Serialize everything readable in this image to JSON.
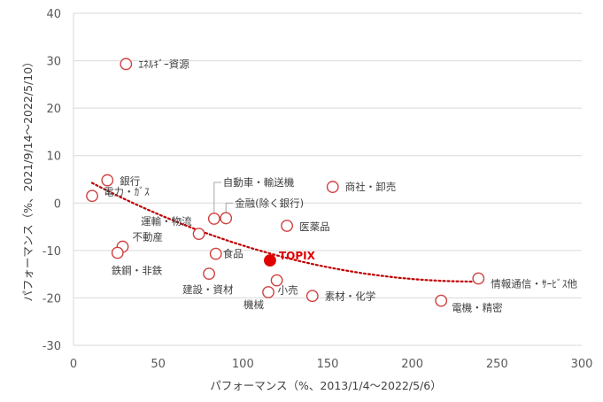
{
  "chart_data": {
    "type": "scatter",
    "title": "",
    "xlabel": "パフォーマンス（%、2013/1/4～2022/5/6）",
    "ylabel": "パフォーマンス（%、2021/9/14～2022/5/10）",
    "xlim": [
      0,
      300
    ],
    "ylim": [
      -30,
      40
    ],
    "x_ticks": [
      "0",
      "50",
      "100",
      "150",
      "200",
      "250",
      "300"
    ],
    "y_ticks": [
      "40",
      "30",
      "20",
      "10",
      "0",
      "-10",
      "-20",
      "-30"
    ],
    "grid": "horizontal",
    "legend": "none",
    "points": [
      {
        "label": "ｴﾈﾙｷﾞｰ資源",
        "x": 31,
        "y": 29.3
      },
      {
        "label": "銀行",
        "x": 20,
        "y": 4.8
      },
      {
        "label": "電力・ｶﾞｽ",
        "x": 11,
        "y": 1.5
      },
      {
        "label": "自動車・輸送機",
        "x": 83,
        "y": -3.3
      },
      {
        "label": "金融(除く銀行)",
        "x": 90,
        "y": -3.2
      },
      {
        "label": "商社・卸売",
        "x": 153,
        "y": 3.4
      },
      {
        "label": "運輸・物流",
        "x": 74,
        "y": -6.5
      },
      {
        "label": "医薬品",
        "x": 126,
        "y": -4.8
      },
      {
        "label": "不動産",
        "x": 29,
        "y": -9.2
      },
      {
        "label": "鉄鋼・非鉄",
        "x": 26,
        "y": -10.5
      },
      {
        "label": "食品",
        "x": 84,
        "y": -10.7
      },
      {
        "label": "建設・資材",
        "x": 80,
        "y": -14.9
      },
      {
        "label": "小売",
        "x": 120,
        "y": -16.3
      },
      {
        "label": "機械",
        "x": 115,
        "y": -18.8
      },
      {
        "label": "素材・化学",
        "x": 141,
        "y": -19.6
      },
      {
        "label": "情報通信・ｻｰﾋﾞｽ他",
        "x": 239,
        "y": -15.9
      },
      {
        "label": "電機・精密",
        "x": 217,
        "y": -20.6
      }
    ],
    "highlight": {
      "label": "TOPIX",
      "x": 116,
      "y": -12.1,
      "color": "#e00000"
    },
    "trendline": {
      "style": "dotted",
      "color": "#c00000",
      "type": "polynomial"
    },
    "marker_color": "#d04040"
  }
}
